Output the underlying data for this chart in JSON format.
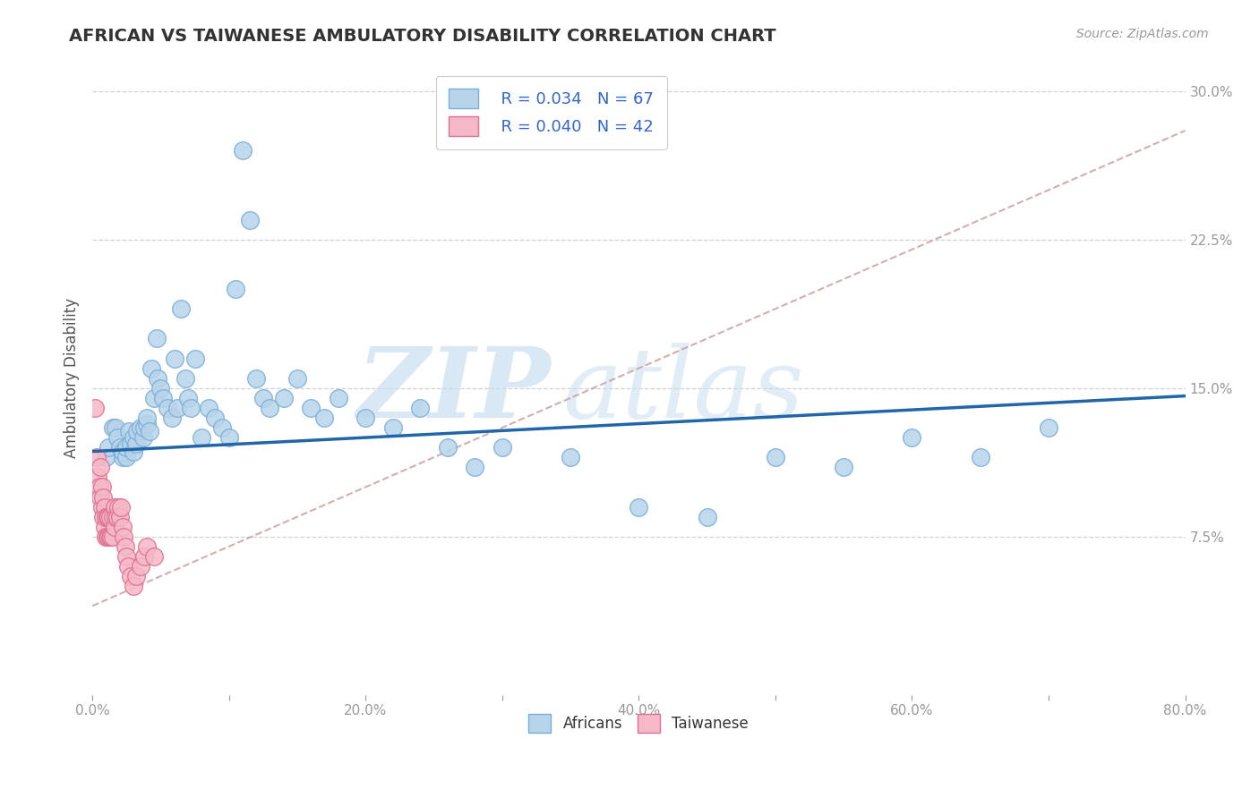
{
  "title": "AFRICAN VS TAIWANESE AMBULATORY DISABILITY CORRELATION CHART",
  "source": "Source: ZipAtlas.com",
  "ylabel": "Ambulatory Disability",
  "xlim": [
    0,
    0.8
  ],
  "ylim": [
    -0.005,
    0.315
  ],
  "xticks": [
    0.0,
    0.1,
    0.2,
    0.3,
    0.4,
    0.5,
    0.6,
    0.7,
    0.8
  ],
  "xticklabels": [
    "0.0%",
    "",
    "20.0%",
    "",
    "40.0%",
    "",
    "60.0%",
    "",
    "80.0%"
  ],
  "yticks": [
    0.075,
    0.15,
    0.225,
    0.3
  ],
  "yticklabels": [
    "7.5%",
    "15.0%",
    "22.5%",
    "30.0%"
  ],
  "legend_r_african": "R = 0.034",
  "legend_n_african": "N = 67",
  "legend_r_taiwanese": "R = 0.040",
  "legend_n_taiwanese": "N = 42",
  "african_color": "#b8d4ea",
  "taiwanese_color": "#f5b8c8",
  "african_edge": "#7aaed6",
  "taiwanese_edge": "#e07090",
  "trend_african_color": "#2266aa",
  "trend_dashed_color": "#cc9999",
  "watermark_color": "#c8dff0",
  "background_color": "#ffffff",
  "grid_color": "#cccccc",
  "african_x": [
    0.01,
    0.012,
    0.015,
    0.017,
    0.018,
    0.02,
    0.022,
    0.022,
    0.025,
    0.025,
    0.027,
    0.028,
    0.03,
    0.03,
    0.032,
    0.033,
    0.035,
    0.037,
    0.038,
    0.04,
    0.04,
    0.042,
    0.043,
    0.045,
    0.047,
    0.048,
    0.05,
    0.052,
    0.055,
    0.058,
    0.06,
    0.062,
    0.065,
    0.068,
    0.07,
    0.072,
    0.075,
    0.08,
    0.085,
    0.09,
    0.095,
    0.1,
    0.105,
    0.11,
    0.115,
    0.12,
    0.125,
    0.13,
    0.14,
    0.15,
    0.16,
    0.17,
    0.18,
    0.2,
    0.22,
    0.24,
    0.26,
    0.28,
    0.3,
    0.35,
    0.4,
    0.45,
    0.5,
    0.55,
    0.6,
    0.65,
    0.7
  ],
  "african_y": [
    0.115,
    0.12,
    0.13,
    0.13,
    0.125,
    0.12,
    0.115,
    0.118,
    0.115,
    0.12,
    0.128,
    0.122,
    0.118,
    0.125,
    0.122,
    0.128,
    0.13,
    0.125,
    0.13,
    0.132,
    0.135,
    0.128,
    0.16,
    0.145,
    0.175,
    0.155,
    0.15,
    0.145,
    0.14,
    0.135,
    0.165,
    0.14,
    0.19,
    0.155,
    0.145,
    0.14,
    0.165,
    0.125,
    0.14,
    0.135,
    0.13,
    0.125,
    0.2,
    0.27,
    0.235,
    0.155,
    0.145,
    0.14,
    0.145,
    0.155,
    0.14,
    0.135,
    0.145,
    0.135,
    0.13,
    0.14,
    0.12,
    0.11,
    0.12,
    0.115,
    0.09,
    0.085,
    0.115,
    0.11,
    0.125,
    0.115,
    0.13
  ],
  "taiwanese_x": [
    0.002,
    0.003,
    0.004,
    0.005,
    0.006,
    0.006,
    0.007,
    0.007,
    0.008,
    0.008,
    0.009,
    0.009,
    0.01,
    0.01,
    0.011,
    0.011,
    0.012,
    0.012,
    0.013,
    0.013,
    0.014,
    0.015,
    0.015,
    0.016,
    0.016,
    0.017,
    0.018,
    0.019,
    0.02,
    0.021,
    0.022,
    0.023,
    0.024,
    0.025,
    0.026,
    0.028,
    0.03,
    0.032,
    0.035,
    0.038,
    0.04,
    0.045
  ],
  "taiwanese_y": [
    0.14,
    0.115,
    0.105,
    0.1,
    0.095,
    0.11,
    0.09,
    0.1,
    0.085,
    0.095,
    0.08,
    0.09,
    0.075,
    0.085,
    0.075,
    0.085,
    0.075,
    0.085,
    0.075,
    0.085,
    0.075,
    0.075,
    0.085,
    0.08,
    0.09,
    0.085,
    0.085,
    0.09,
    0.085,
    0.09,
    0.08,
    0.075,
    0.07,
    0.065,
    0.06,
    0.055,
    0.05,
    0.055,
    0.06,
    0.065,
    0.07,
    0.065
  ],
  "african_trend_slope": 0.035,
  "african_trend_intercept": 0.118,
  "dashed_trend_slope": 0.3,
  "dashed_trend_intercept": 0.04
}
